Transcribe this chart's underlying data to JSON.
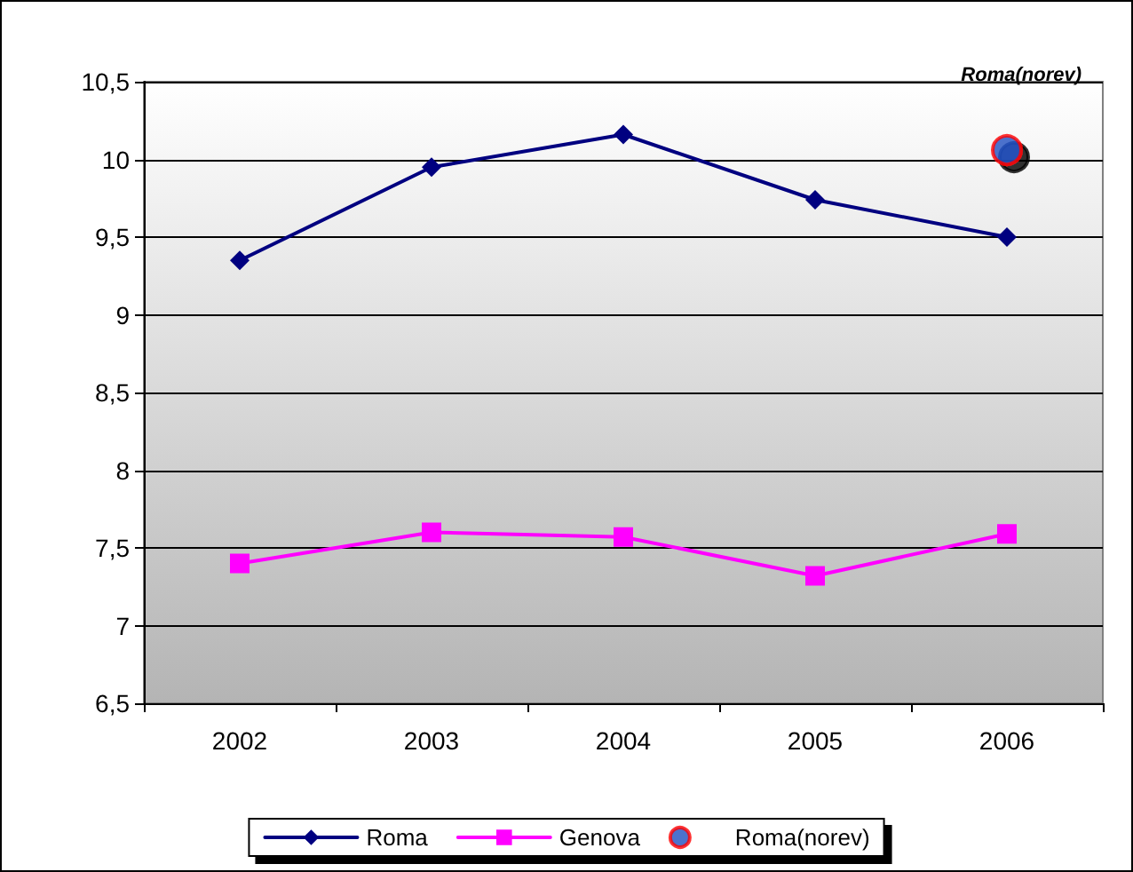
{
  "chart_data": {
    "type": "line",
    "categories": [
      "2002",
      "2003",
      "2004",
      "2005",
      "2006"
    ],
    "series": [
      {
        "name": "Roma",
        "color": "#000080",
        "marker": "diamond",
        "values": [
          9.35,
          9.95,
          10.16,
          9.74,
          9.5
        ]
      },
      {
        "name": "Genova",
        "color": "#ff00ff",
        "marker": "square",
        "values": [
          7.4,
          7.6,
          7.57,
          7.32,
          7.59
        ]
      },
      {
        "name": "Roma(norev)",
        "color": "#1f4fc0",
        "type": "scatter",
        "marker": "circle",
        "values": [
          null,
          null,
          null,
          null,
          10.06
        ]
      }
    ],
    "ylim": [
      6.5,
      10.5
    ],
    "yticks": [
      {
        "value": 6.5,
        "label": "6,5"
      },
      7,
      {
        "value": 7.5,
        "label": "7,5"
      },
      8,
      {
        "value": 8.5,
        "label": "8,5"
      },
      9,
      {
        "value": 9.5,
        "label": "9,5"
      },
      10,
      {
        "value": 10.5,
        "label": "10,5"
      }
    ],
    "grid": "y",
    "legend": "bottom",
    "annotations": [
      "Roma(norev)"
    ]
  }
}
